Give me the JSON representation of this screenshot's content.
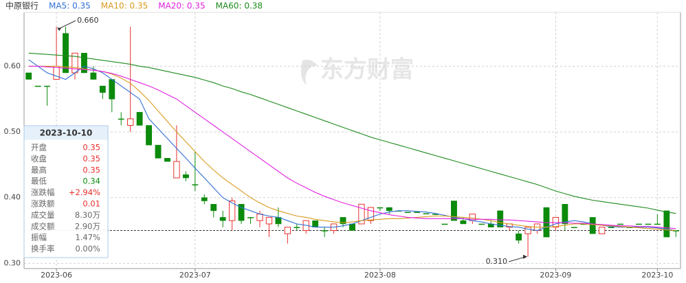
{
  "chart_data": {
    "type": "candlestick",
    "watermark": "东方财富",
    "categories": [
      null,
      null,
      null,
      "2023-06",
      null,
      null,
      null,
      null,
      null,
      null,
      null,
      null,
      null,
      null,
      null,
      null,
      null,
      null,
      "2023-07",
      null,
      null,
      null,
      null,
      null,
      null,
      null,
      null,
      null,
      null,
      null,
      null,
      null,
      null,
      null,
      null,
      null,
      null,
      null,
      "2023-08",
      null,
      null,
      null,
      null,
      null,
      null,
      null,
      null,
      null,
      null,
      null,
      null,
      null,
      null,
      null,
      null,
      null,
      null,
      "2023-09",
      null,
      null,
      null,
      null,
      null,
      null,
      null,
      null,
      null,
      null,
      "2023-10",
      null,
      null
    ],
    "ylim": [
      0.292,
      0.682
    ],
    "yticks": [
      {
        "value": 0.3,
        "label": "0.30"
      },
      {
        "value": 0.4,
        "label": "0.40"
      },
      {
        "value": 0.5,
        "label": "0.50"
      },
      {
        "value": 0.6,
        "label": "0.60"
      }
    ],
    "grid": true,
    "up_color": "#e8302c",
    "down_color": "#0b8a0b",
    "last_price_line": 0.35,
    "max_label": {
      "value": 0.66,
      "label": "0.660"
    },
    "min_label": {
      "value": 0.31,
      "label": "0.310"
    },
    "series": [
      {
        "name": "中原银行",
        "type": "candlestick",
        "color": "#333333",
        "open": [
          0.59,
          0.57,
          0.57,
          0.58,
          0.65,
          0.59,
          0.62,
          0.59,
          0.57,
          0.58,
          0.52,
          0.51,
          0.53,
          0.51,
          0.48,
          0.46,
          0.43,
          0.435,
          0.42,
          0.4,
          0.39,
          0.37,
          0.365,
          0.39,
          0.37,
          0.365,
          0.36,
          0.37,
          0.345,
          0.355,
          0.35,
          0.365,
          0.35,
          0.35,
          0.37,
          0.36,
          0.36,
          0.365,
          0.385,
          0.385,
          0.38,
          0.378,
          0.378,
          0.376,
          0.375,
          0.36,
          0.395,
          0.365,
          0.365,
          0.36,
          0.36,
          0.38,
          0.355,
          0.345,
          0.345,
          0.35,
          0.385,
          0.355,
          0.39,
          0.355,
          0.36,
          0.37,
          0.345,
          0.355,
          0.36,
          0.355,
          0.36,
          0.36,
          0.36,
          0.38,
          0.35
        ],
        "high": [
          0.59,
          0.57,
          0.57,
          0.66,
          0.66,
          0.62,
          0.62,
          0.6,
          0.57,
          0.58,
          0.53,
          0.66,
          0.53,
          0.51,
          0.48,
          0.46,
          0.51,
          0.44,
          0.47,
          0.405,
          0.39,
          0.38,
          0.4,
          0.39,
          0.37,
          0.38,
          0.37,
          0.385,
          0.355,
          0.36,
          0.365,
          0.365,
          0.355,
          0.36,
          0.37,
          0.36,
          0.39,
          0.385,
          0.385,
          0.385,
          0.38,
          0.378,
          0.378,
          0.376,
          0.375,
          0.36,
          0.395,
          0.37,
          0.375,
          0.36,
          0.365,
          0.38,
          0.36,
          0.35,
          0.355,
          0.36,
          0.385,
          0.37,
          0.39,
          0.355,
          0.36,
          0.37,
          0.355,
          0.355,
          0.36,
          0.355,
          0.36,
          0.36,
          0.375,
          0.38,
          0.35
        ],
        "low": [
          0.58,
          0.57,
          0.54,
          0.58,
          0.59,
          0.58,
          0.59,
          0.58,
          0.55,
          0.53,
          0.51,
          0.5,
          0.51,
          0.48,
          0.46,
          0.455,
          0.43,
          0.425,
          0.41,
          0.39,
          0.37,
          0.355,
          0.35,
          0.36,
          0.36,
          0.355,
          0.34,
          0.355,
          0.33,
          0.35,
          0.345,
          0.355,
          0.34,
          0.345,
          0.355,
          0.35,
          0.36,
          0.36,
          0.38,
          0.375,
          0.38,
          0.378,
          0.378,
          0.376,
          0.375,
          0.36,
          0.365,
          0.36,
          0.36,
          0.36,
          0.355,
          0.355,
          0.35,
          0.33,
          0.31,
          0.345,
          0.34,
          0.35,
          0.35,
          0.355,
          0.36,
          0.345,
          0.345,
          0.355,
          0.36,
          0.355,
          0.36,
          0.36,
          0.36,
          0.34,
          0.34
        ],
        "close": [
          0.58,
          0.57,
          0.57,
          0.6,
          0.59,
          0.62,
          0.59,
          0.58,
          0.56,
          0.55,
          0.52,
          0.52,
          0.51,
          0.48,
          0.46,
          0.455,
          0.455,
          0.43,
          0.42,
          0.395,
          0.38,
          0.365,
          0.395,
          0.365,
          0.37,
          0.375,
          0.37,
          0.36,
          0.355,
          0.355,
          0.365,
          0.355,
          0.35,
          0.36,
          0.36,
          0.35,
          0.39,
          0.385,
          0.385,
          0.38,
          0.38,
          0.378,
          0.378,
          0.376,
          0.375,
          0.36,
          0.365,
          0.36,
          0.375,
          0.36,
          0.355,
          0.355,
          0.36,
          0.335,
          0.355,
          0.36,
          0.34,
          0.37,
          0.36,
          0.355,
          0.36,
          0.345,
          0.355,
          0.355,
          0.36,
          0.355,
          0.36,
          0.36,
          0.36,
          0.34,
          0.35
        ]
      },
      {
        "name": "MA5: 0.35",
        "color": "#2f6fd6",
        "values": [
          0.61,
          0.6,
          0.59,
          0.585,
          0.58,
          0.59,
          0.6,
          0.596,
          0.59,
          0.58,
          0.57,
          0.56,
          0.55,
          0.52,
          0.505,
          0.49,
          0.475,
          0.46,
          0.445,
          0.43,
          0.415,
          0.4,
          0.392,
          0.385,
          0.38,
          0.375,
          0.372,
          0.37,
          0.365,
          0.36,
          0.358,
          0.355,
          0.355,
          0.355,
          0.357,
          0.36,
          0.365,
          0.37,
          0.375,
          0.378,
          0.38,
          0.38,
          0.379,
          0.378,
          0.376,
          0.373,
          0.37,
          0.368,
          0.365,
          0.363,
          0.36,
          0.358,
          0.356,
          0.355,
          0.352,
          0.35,
          0.355,
          0.36,
          0.363,
          0.365,
          0.363,
          0.36,
          0.358,
          0.356,
          0.355,
          0.355,
          0.355,
          0.355,
          0.354,
          0.352,
          0.35
        ]
      },
      {
        "name": "MA10: 0.35",
        "color": "#d99a1c",
        "values": [
          0.6,
          0.6,
          0.6,
          0.6,
          0.599,
          0.598,
          0.596,
          0.594,
          0.592,
          0.588,
          0.582,
          0.574,
          0.562,
          0.548,
          0.532,
          0.516,
          0.5,
          0.485,
          0.47,
          0.455,
          0.442,
          0.43,
          0.42,
          0.41,
          0.4,
          0.392,
          0.385,
          0.38,
          0.376,
          0.372,
          0.37,
          0.367,
          0.365,
          0.363,
          0.362,
          0.363,
          0.365,
          0.366,
          0.367,
          0.368,
          0.368,
          0.369,
          0.37,
          0.371,
          0.372,
          0.372,
          0.371,
          0.37,
          0.369,
          0.367,
          0.365,
          0.362,
          0.36,
          0.358,
          0.356,
          0.355,
          0.355,
          0.356,
          0.358,
          0.36,
          0.36,
          0.359,
          0.358,
          0.357,
          0.356,
          0.355,
          0.354,
          0.353,
          0.352,
          0.351,
          0.35
        ]
      },
      {
        "name": "MA20: 0.35",
        "color": "#e021e0",
        "values": [
          0.6,
          0.6,
          0.599,
          0.598,
          0.597,
          0.596,
          0.595,
          0.594,
          0.592,
          0.589,
          0.585,
          0.58,
          0.575,
          0.57,
          0.564,
          0.557,
          0.55,
          0.54,
          0.53,
          0.52,
          0.51,
          0.5,
          0.49,
          0.48,
          0.47,
          0.46,
          0.45,
          0.44,
          0.43,
          0.422,
          0.415,
          0.408,
          0.402,
          0.397,
          0.392,
          0.388,
          0.384,
          0.38,
          0.377,
          0.374,
          0.372,
          0.37,
          0.369,
          0.368,
          0.368,
          0.368,
          0.368,
          0.368,
          0.367,
          0.367,
          0.367,
          0.366,
          0.366,
          0.365,
          0.364,
          0.363,
          0.362,
          0.362,
          0.362,
          0.361,
          0.361,
          0.36,
          0.359,
          0.358,
          0.357,
          0.357,
          0.356,
          0.356,
          0.355,
          0.354,
          0.353
        ]
      },
      {
        "name": "MA60: 0.38",
        "color": "#1d8a1d",
        "values": [
          0.62,
          0.619,
          0.618,
          0.617,
          0.616,
          0.615,
          0.613,
          0.611,
          0.609,
          0.607,
          0.605,
          0.603,
          0.6,
          0.598,
          0.595,
          0.592,
          0.589,
          0.586,
          0.583,
          0.579,
          0.575,
          0.57,
          0.566,
          0.561,
          0.557,
          0.552,
          0.547,
          0.542,
          0.537,
          0.532,
          0.527,
          0.522,
          0.517,
          0.512,
          0.507,
          0.502,
          0.497,
          0.492,
          0.488,
          0.484,
          0.48,
          0.476,
          0.472,
          0.468,
          0.464,
          0.46,
          0.456,
          0.452,
          0.448,
          0.444,
          0.44,
          0.436,
          0.432,
          0.428,
          0.424,
          0.42,
          0.415,
          0.41,
          0.406,
          0.402,
          0.399,
          0.396,
          0.394,
          0.392,
          0.39,
          0.388,
          0.386,
          0.384,
          0.381,
          0.378,
          0.376
        ]
      }
    ],
    "tooltip": {
      "date": "2023-10-10",
      "rows": [
        {
          "label": "开盘",
          "value": "0.35",
          "color": "#e8302c"
        },
        {
          "label": "收盘",
          "value": "0.35",
          "color": "#e8302c"
        },
        {
          "label": "最高",
          "value": "0.35",
          "color": "#e8302c"
        },
        {
          "label": "最低",
          "value": "0.34",
          "color": "#0b8a0b"
        },
        {
          "label": "涨跌幅",
          "value": "+2.94%",
          "color": "#e8302c"
        },
        {
          "label": "涨跌额",
          "value": "0.01",
          "color": "#e8302c"
        },
        {
          "label": "成交量",
          "value": "8.30万",
          "color": "#666666"
        },
        {
          "label": "成交额",
          "value": "2.90万",
          "color": "#666666"
        },
        {
          "label": "振幅",
          "value": "1.47%",
          "color": "#666666"
        },
        {
          "label": "换手率",
          "value": "0.00%",
          "color": "#666666"
        }
      ]
    }
  }
}
